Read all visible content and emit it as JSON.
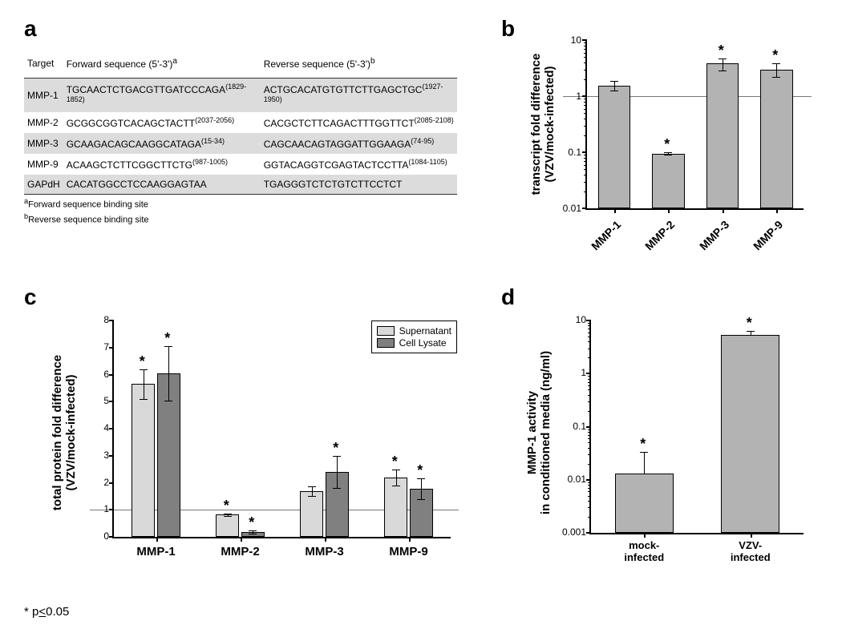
{
  "panel_labels": {
    "a": "a",
    "b": "b",
    "c": "c",
    "d": "d"
  },
  "panel_a": {
    "columns": [
      "Target",
      "Forward sequence (5'-3')",
      "Reverse sequence (5'-3')"
    ],
    "col_super": {
      "fwd": "a",
      "rev": "b"
    },
    "rows": [
      {
        "target": "MMP-1",
        "fwd": "TGCAACTCTGACGTTGATCCCAGA",
        "fwd_site": "(1829-1852)",
        "rev": "ACTGCACATGTGTTCTTGAGCTGC",
        "rev_site": "(1927-1950)",
        "shade": true
      },
      {
        "target": "MMP-2",
        "fwd": "GCGGCGGTCACAGCTACTT",
        "fwd_site": "(2037-2056)",
        "rev": "CACGCTCTTCAGACTTTGGTTCT",
        "rev_site": "(2085-2108)",
        "shade": false
      },
      {
        "target": "MMP-3",
        "fwd": "GCAAGACAGCAAGGCATAGA",
        "fwd_site": "(15-34)",
        "rev": "CAGCAACAGTAGGATTGGAAGA",
        "rev_site": "(74-95)",
        "shade": true
      },
      {
        "target": "MMP-9",
        "fwd": "ACAAGCTCTTCGGCTTCTG",
        "fwd_site": "(987-1005)",
        "rev": "GGTACAGGTCGAGTACTCCTTA",
        "rev_site": "(1084-1105)",
        "shade": false
      },
      {
        "target": "GAPdH",
        "fwd": "CACATGGCCTCCAAGGAGTAA",
        "fwd_site": "",
        "rev": "TGAGGGTCTCTGTCTTCCTCT",
        "rev_site": "",
        "shade": true
      }
    ],
    "footnotes": [
      "Forward sequence binding site",
      "Reverse sequence binding site"
    ],
    "footnote_sup": [
      "a",
      "b"
    ]
  },
  "panel_b": {
    "type": "bar_log",
    "ylabel": "transcript  fold difference\n(VZV/mock-infected)",
    "categories": [
      "MMP-1",
      "MMP-2",
      "MMP-3",
      "MMP-9"
    ],
    "values": [
      1.55,
      0.095,
      3.8,
      3.0
    ],
    "err": [
      0.3,
      0.005,
      0.9,
      0.8
    ],
    "sig": [
      false,
      true,
      true,
      true
    ],
    "bar_color": "#b3b3b3",
    "ylim": [
      0.01,
      10
    ],
    "yticks": [
      0.01,
      0.1,
      1,
      10
    ],
    "ytick_labels": [
      "0.01",
      "0.1",
      "1",
      "10"
    ],
    "ref_line": 1
  },
  "panel_c": {
    "type": "grouped_bar_linear",
    "ylabel": "total protein fold difference\n(VZV/mock-infected)",
    "categories": [
      "MMP-1",
      "MMP-2",
      "MMP-3",
      "MMP-9"
    ],
    "series": [
      {
        "name": "Supernatant",
        "color": "#d9d9d9",
        "values": [
          5.65,
          0.82,
          1.7,
          2.2
        ],
        "err": [
          0.55,
          0.05,
          0.18,
          0.3
        ],
        "sig": [
          true,
          true,
          false,
          true
        ]
      },
      {
        "name": "Cell Lysate",
        "color": "#808080",
        "values": [
          6.05,
          0.18,
          2.4,
          1.78
        ],
        "err": [
          1.0,
          0.05,
          0.6,
          0.38
        ],
        "sig": [
          true,
          true,
          true,
          true
        ]
      }
    ],
    "ylim": [
      0,
      8
    ],
    "yticks": [
      0,
      1,
      2,
      3,
      4,
      5,
      6,
      7,
      8
    ],
    "ref_line": 1
  },
  "panel_d": {
    "type": "bar_log",
    "ylabel": "MMP-1 activity\nin conditioned media (ng/ml)",
    "categories": [
      "mock-\ninfected",
      "VZV-\ninfected"
    ],
    "values": [
      0.013,
      5.3
    ],
    "err": [
      0.02,
      1.0
    ],
    "sig": [
      true,
      true
    ],
    "bar_color": "#b3b3b3",
    "ylim": [
      0.001,
      10
    ],
    "yticks": [
      0.001,
      0.01,
      0.1,
      1,
      10
    ],
    "ytick_labels": [
      "0.001",
      "0.01",
      "0.1",
      "1",
      "10"
    ]
  },
  "pnote": "* p<0.05",
  "pnote_underline_char": "<"
}
